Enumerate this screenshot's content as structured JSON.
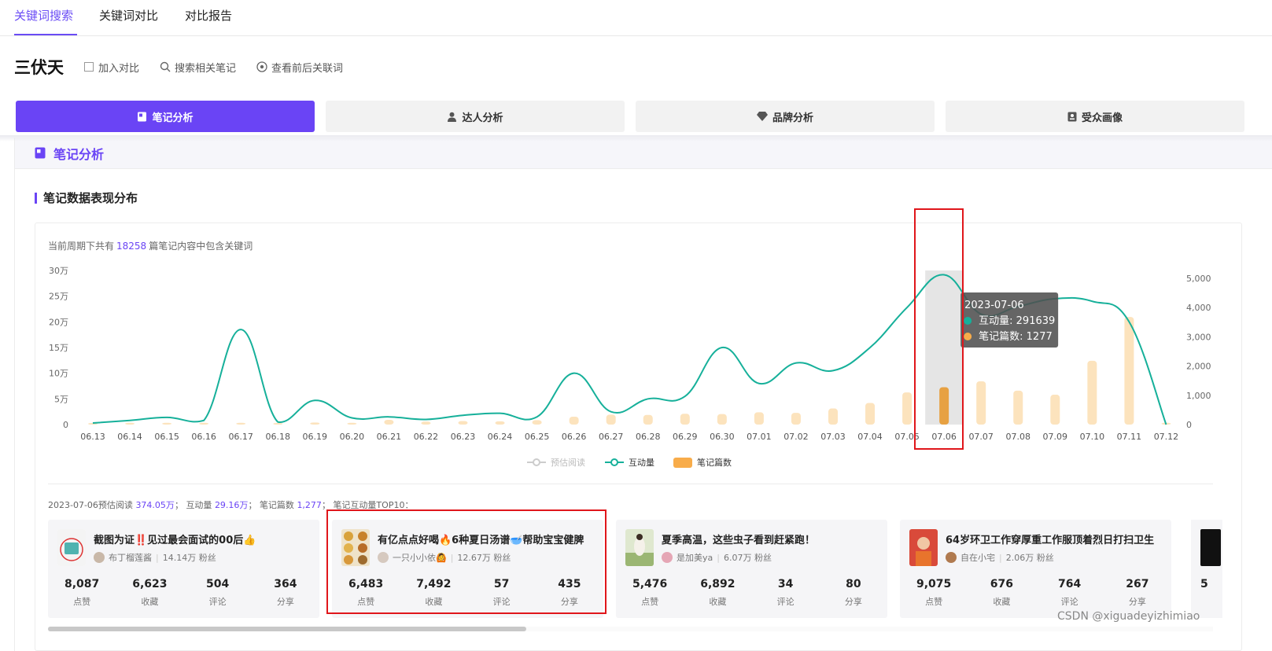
{
  "topnav": {
    "tabs": [
      {
        "label": "关键词搜索",
        "active": true
      },
      {
        "label": "关键词对比",
        "active": false
      },
      {
        "label": "对比报告",
        "active": false
      }
    ]
  },
  "keyword": {
    "title": "三伏天",
    "add_compare": "加入对比",
    "search_related": "搜索相关笔记",
    "view_related": "查看前后关联词"
  },
  "analysis_tabs": [
    {
      "label": "笔记分析",
      "icon": "note-icon",
      "active": true
    },
    {
      "label": "达人分析",
      "icon": "user-icon",
      "active": false
    },
    {
      "label": "品牌分析",
      "icon": "diamond-icon",
      "active": false
    },
    {
      "label": "受众画像",
      "icon": "profile-card-icon",
      "active": false
    }
  ],
  "section": {
    "title": "笔记分析",
    "subtitle": "笔记数据表现分布"
  },
  "summary": {
    "prefix": "当前周期下共有",
    "count": "18258",
    "suffix": "篇笔记内容中包含关键词"
  },
  "colors": {
    "accent": "#6a44f5",
    "interaction_line": "#16b09a",
    "notes_bar": "#fce3bd",
    "notes_bar_highlight": "#e7a142",
    "highlight_box": "#e0161b"
  },
  "chart_data": {
    "type": "bar+line",
    "categories": [
      "06.13",
      "06.14",
      "06.15",
      "06.16",
      "06.17",
      "06.18",
      "06.19",
      "06.20",
      "06.21",
      "06.22",
      "06.23",
      "06.24",
      "06.25",
      "06.26",
      "06.27",
      "06.28",
      "06.29",
      "06.30",
      "07.01",
      "07.02",
      "07.03",
      "07.04",
      "07.05",
      "07.06",
      "07.07",
      "07.08",
      "07.09",
      "07.10",
      "07.11",
      "07.12"
    ],
    "y_left_ticks": [
      "0",
      "5万",
      "10万",
      "15万",
      "20万",
      "25万",
      "30万"
    ],
    "y_left_max": 300000,
    "y_right_ticks": [
      "0",
      "1,000",
      "2,000",
      "3,000",
      "4,000",
      "5,000"
    ],
    "y_right_max": 5000,
    "series": [
      {
        "name": "预估阅读",
        "axis": "left",
        "values": [
          null,
          null,
          null,
          null,
          null,
          null,
          null,
          null,
          null,
          null,
          null,
          null,
          null,
          null,
          null,
          null,
          null,
          null,
          null,
          null,
          null,
          null,
          null,
          null,
          null,
          null,
          null,
          null,
          null,
          null
        ]
      },
      {
        "name": "互动量",
        "axis": "left",
        "type": "line",
        "values": [
          3000,
          8000,
          14000,
          8000,
          185000,
          5000,
          47000,
          13000,
          15000,
          10000,
          18000,
          22000,
          15000,
          100000,
          25000,
          50000,
          55000,
          150000,
          80000,
          120000,
          105000,
          150000,
          228000,
          291639,
          215000,
          230000,
          245000,
          240000,
          200000,
          0
        ]
      },
      {
        "name": "笔记篇数",
        "axis": "right",
        "type": "bar",
        "values": [
          30,
          60,
          60,
          60,
          60,
          20,
          70,
          60,
          160,
          100,
          120,
          110,
          150,
          270,
          340,
          330,
          370,
          360,
          420,
          400,
          550,
          740,
          1100,
          1277,
          1480,
          1160,
          1020,
          2180,
          3680,
          60
        ]
      }
    ],
    "highlight_index": 23,
    "tooltip": {
      "date": "2023-07-06",
      "rows": [
        {
          "label": "互动量",
          "value": "291639"
        },
        {
          "label": "笔记篇数",
          "value": "1277"
        }
      ]
    },
    "legend": [
      "预估阅读",
      "互动量",
      "笔记篇数"
    ]
  },
  "day_stats": {
    "date_label": "2023-07-06预估阅读",
    "read": "374.05万",
    "interact_label": "互动量",
    "interact": "29.16万",
    "notes_label": "笔记篇数",
    "notes": "1,277",
    "top_label": "笔记互动量TOP10："
  },
  "cards": [
    {
      "title": "截图为证‼️见过最会面试的00后👍",
      "author": "布丁榴莲酱",
      "fans": "14.14万 粉丝",
      "stats": [
        {
          "n": "8,087",
          "l": "点赞"
        },
        {
          "n": "6,623",
          "l": "收藏"
        },
        {
          "n": "504",
          "l": "评论"
        },
        {
          "n": "364",
          "l": "分享"
        }
      ]
    },
    {
      "title": "有亿点点好喝🔥6种夏日汤谱🥣帮助宝宝健脾",
      "author": "一只小小依🙆",
      "fans": "12.67万 粉丝",
      "stats": [
        {
          "n": "6,483",
          "l": "点赞"
        },
        {
          "n": "7,492",
          "l": "收藏"
        },
        {
          "n": "57",
          "l": "评论"
        },
        {
          "n": "435",
          "l": "分享"
        }
      ]
    },
    {
      "title": "夏季高温，这些虫子看到赶紧跑！",
      "author": "是加美ya",
      "fans": "6.07万 粉丝",
      "stats": [
        {
          "n": "5,476",
          "l": "点赞"
        },
        {
          "n": "6,892",
          "l": "收藏"
        },
        {
          "n": "34",
          "l": "评论"
        },
        {
          "n": "80",
          "l": "分享"
        }
      ]
    },
    {
      "title": "64岁环卫工作穿厚重工作服顶着烈日打扫卫生",
      "author": "自在小宅",
      "fans": "2.06万 粉丝",
      "stats": [
        {
          "n": "9,075",
          "l": "点赞"
        },
        {
          "n": "676",
          "l": "收藏"
        },
        {
          "n": "764",
          "l": "评论"
        },
        {
          "n": "267",
          "l": "分享"
        }
      ]
    }
  ],
  "card_stub_num": "5",
  "watermark": "CSDN @xiguadeyizhimiao"
}
